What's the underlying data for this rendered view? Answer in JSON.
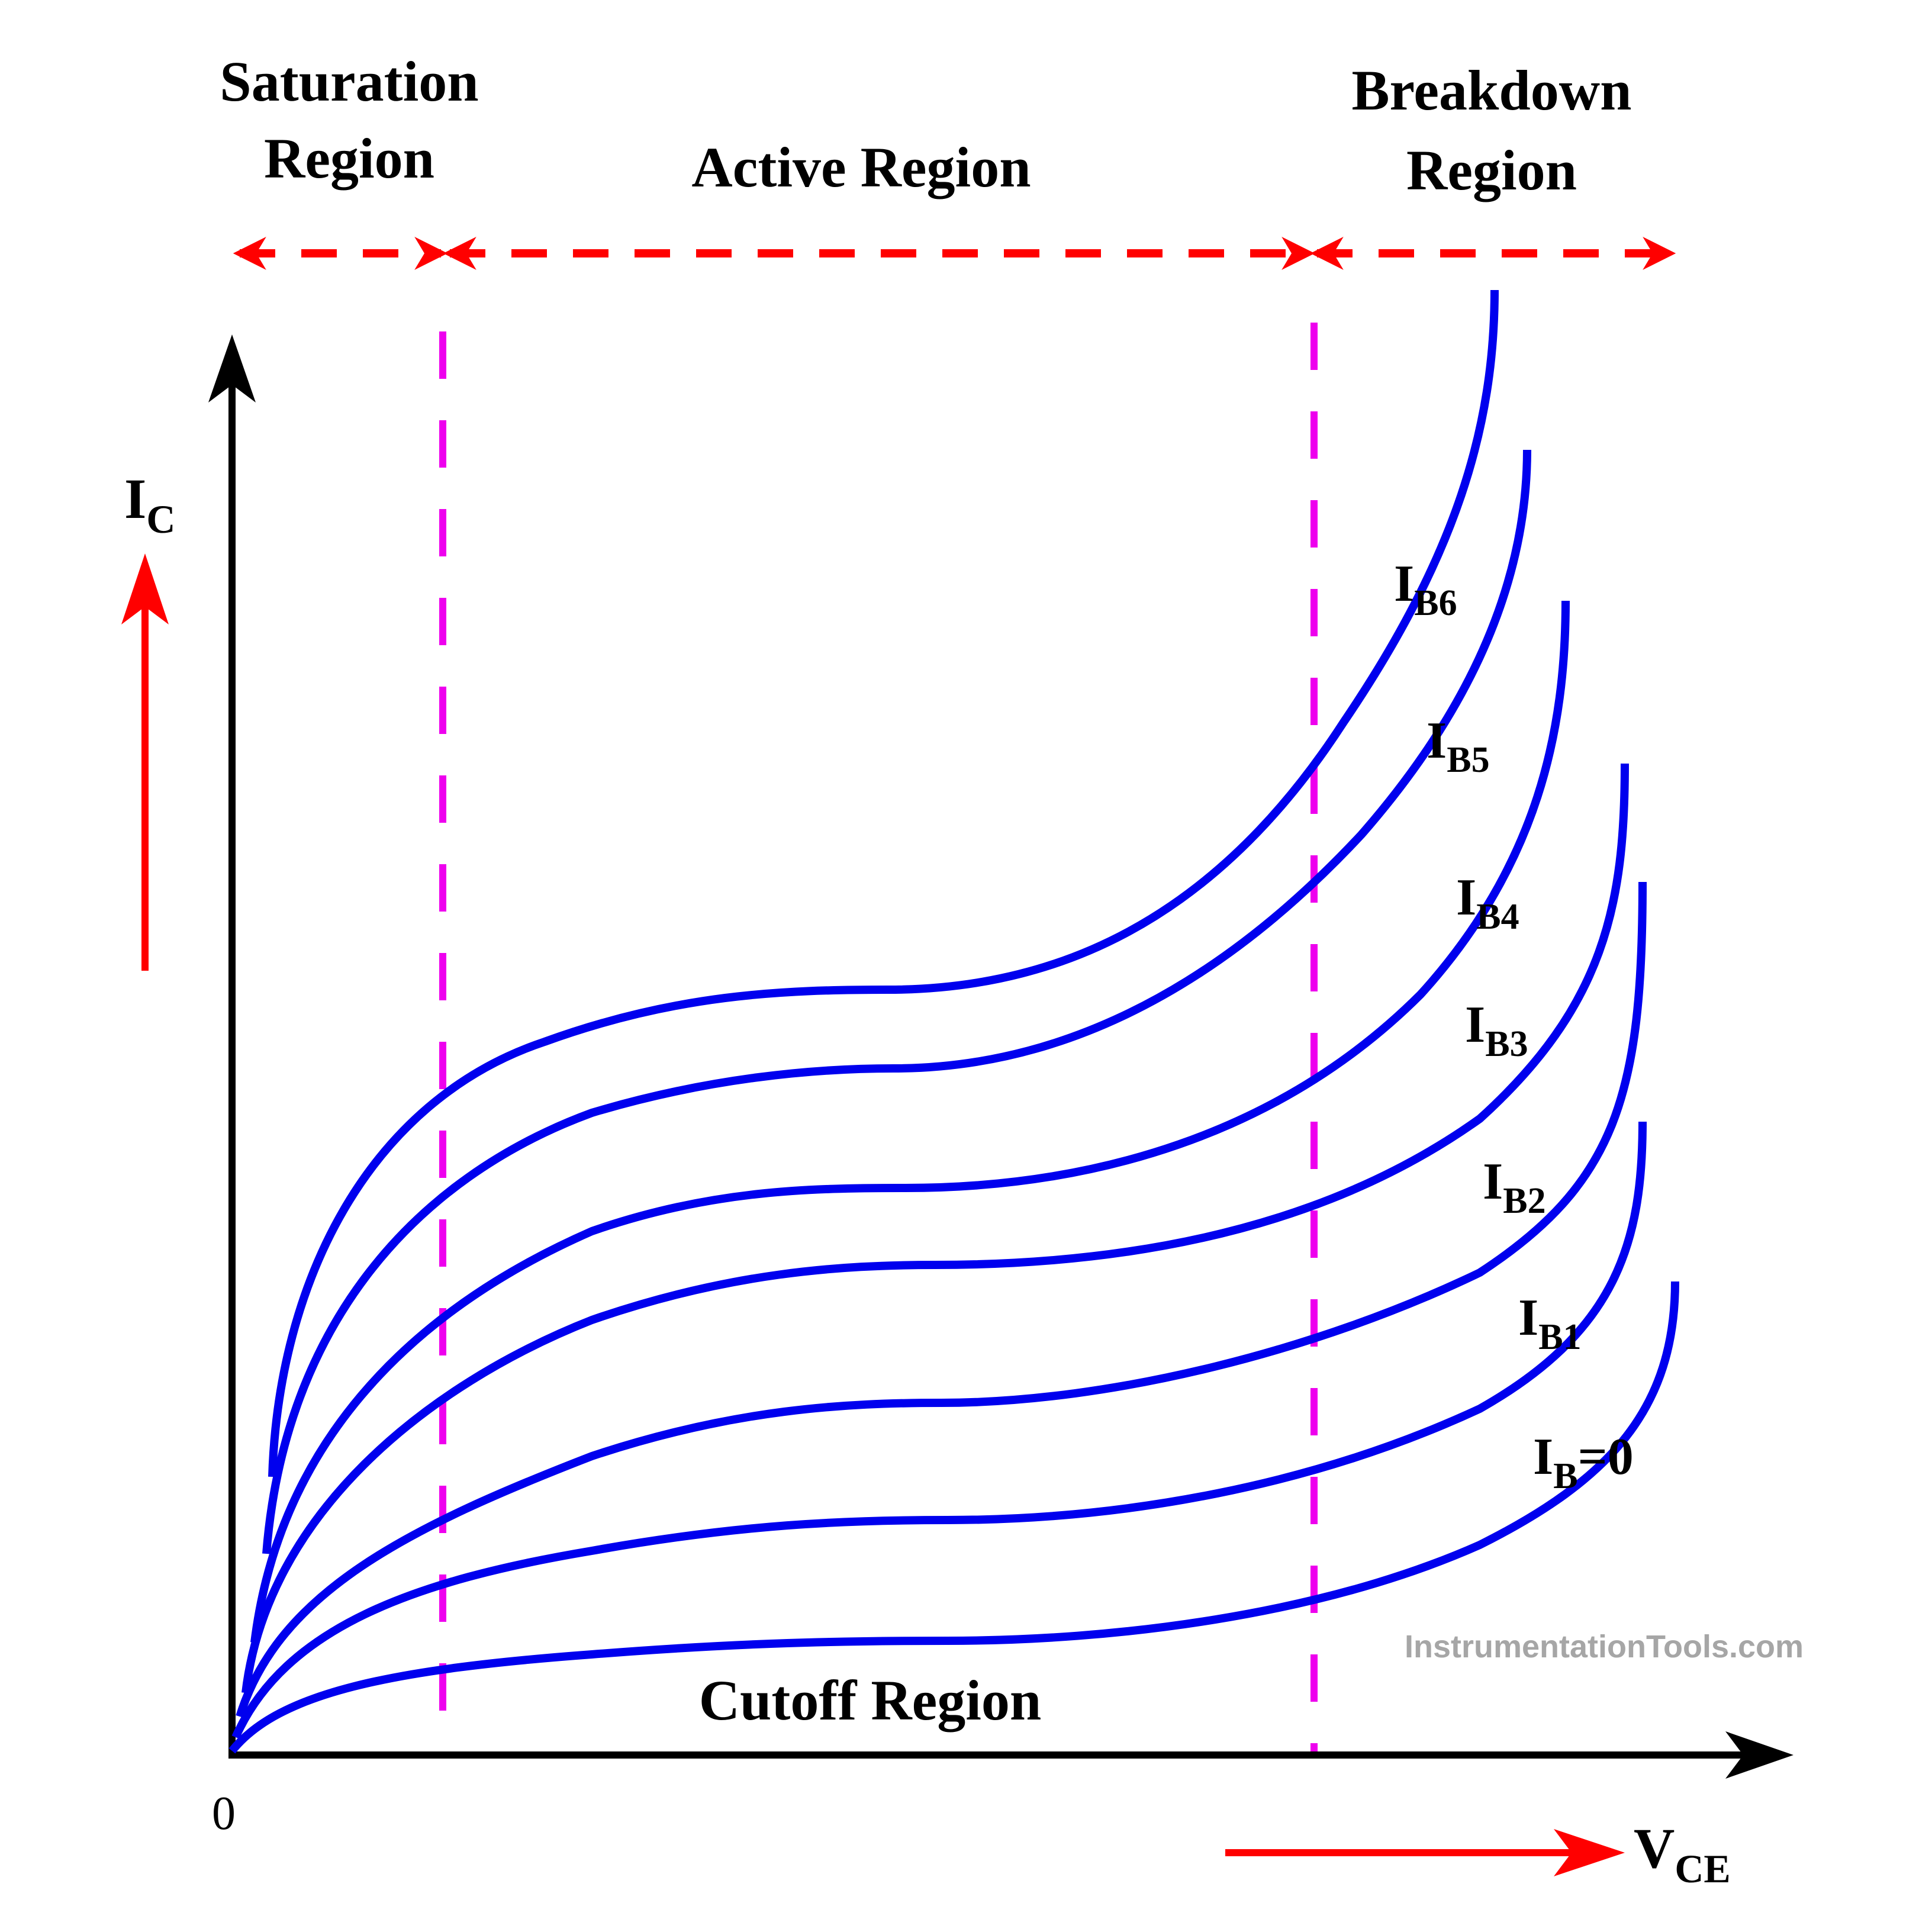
{
  "regions": {
    "saturation": {
      "line1": "Saturation",
      "line2": "Region"
    },
    "active": "Active Region",
    "breakdown": {
      "line1": "Breakdown",
      "line2": "Region"
    },
    "cutoff": "Cutoff Region"
  },
  "axes": {
    "y_main": "I",
    "y_sub": "C",
    "x_main": "V",
    "x_sub": "CE",
    "origin": "0"
  },
  "curves": [
    {
      "main": "I",
      "sub": "B6",
      "suffix": ""
    },
    {
      "main": "I",
      "sub": "B5",
      "suffix": ""
    },
    {
      "main": "I",
      "sub": "B4",
      "suffix": ""
    },
    {
      "main": "I",
      "sub": "B3",
      "suffix": ""
    },
    {
      "main": "I",
      "sub": "B2",
      "suffix": ""
    },
    {
      "main": "I",
      "sub": "B1",
      "suffix": ""
    },
    {
      "main": "I",
      "sub": "B",
      "suffix": "=0"
    }
  ],
  "watermark": "InstrumentationTools.com",
  "colors": {
    "curve": "#0000ee",
    "axis": "#000000",
    "arrow_red": "#ff0000",
    "divider": "#ee00ee",
    "watermark": "#a6a6a6"
  }
}
